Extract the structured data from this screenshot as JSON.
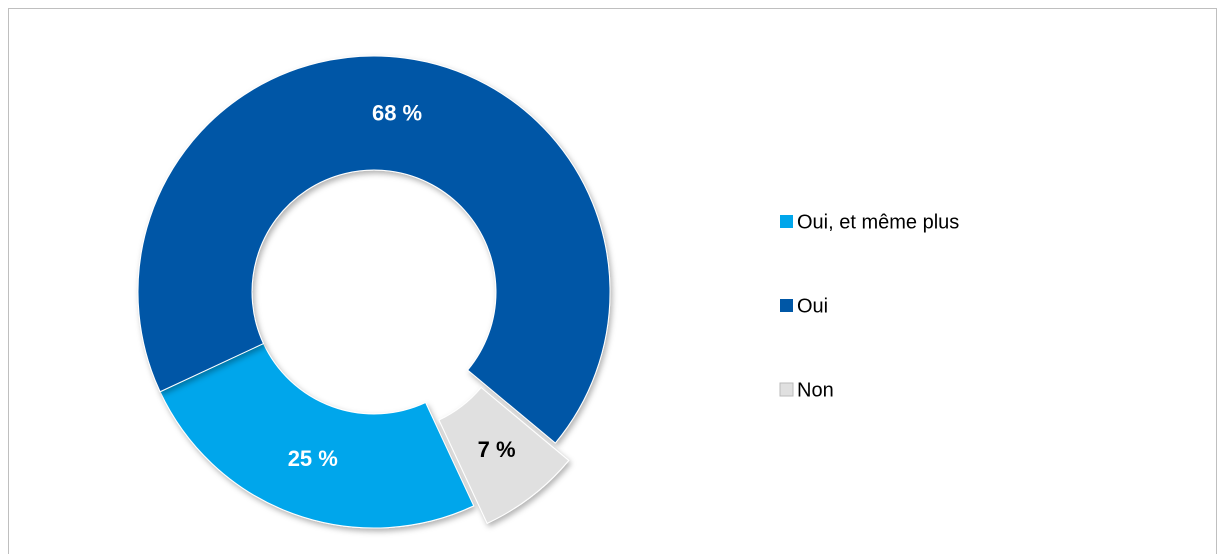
{
  "chart_data": {
    "type": "donut",
    "categories": [
      "Oui, et même plus",
      "Oui",
      "Non"
    ],
    "values": [
      25,
      68,
      7
    ],
    "value_labels": [
      "25 %",
      "68 %",
      "7 %"
    ],
    "colors": [
      "#00a6eb",
      "#0057a6",
      "#e0e0e0"
    ],
    "legend": "right"
  }
}
